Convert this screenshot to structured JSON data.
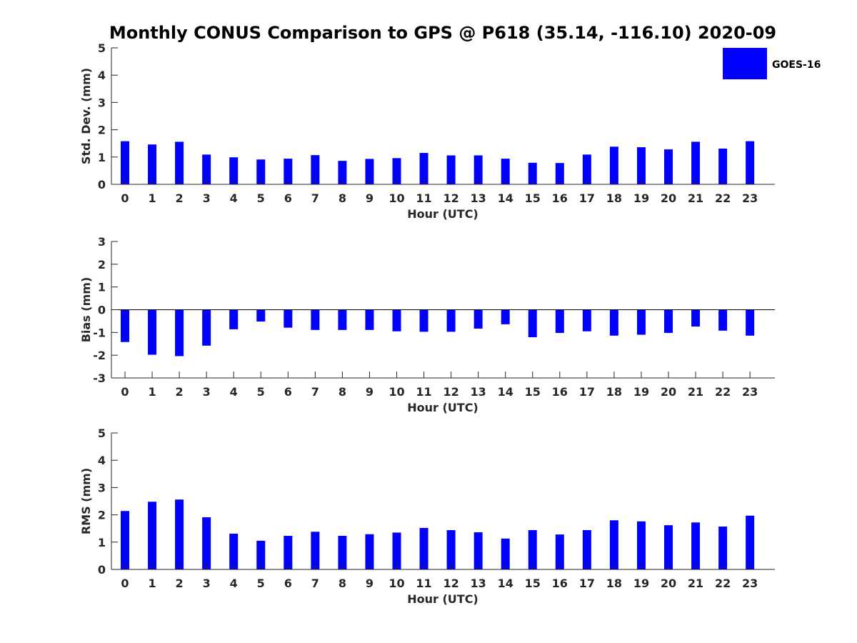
{
  "title": "Monthly CONUS Comparison to GPS @ P618 (35.14, -116.10) 2020-09",
  "legend": {
    "label": "GOES-16",
    "color": "#0000ff"
  },
  "chart_data": [
    {
      "type": "bar",
      "categories": [
        "0",
        "1",
        "2",
        "3",
        "4",
        "5",
        "6",
        "7",
        "8",
        "9",
        "10",
        "11",
        "12",
        "13",
        "14",
        "15",
        "16",
        "17",
        "18",
        "19",
        "20",
        "21",
        "22",
        "23"
      ],
      "series": [
        {
          "name": "GOES-16",
          "values": [
            1.58,
            1.46,
            1.56,
            1.09,
            0.99,
            0.91,
            0.94,
            1.07,
            0.86,
            0.93,
            0.96,
            1.15,
            1.06,
            1.06,
            0.94,
            0.79,
            0.78,
            1.09,
            1.38,
            1.36,
            1.28,
            1.56,
            1.31,
            1.58
          ]
        }
      ],
      "xlabel": "Hour (UTC)",
      "ylabel": "Std. Dev. (mm)",
      "ylim": [
        0,
        5
      ],
      "yticks": [
        "0",
        "1",
        "2",
        "3",
        "4",
        "5"
      ],
      "grid": false,
      "legend_position": "top-right"
    },
    {
      "type": "bar",
      "categories": [
        "0",
        "1",
        "2",
        "3",
        "4",
        "5",
        "6",
        "7",
        "8",
        "9",
        "10",
        "11",
        "12",
        "13",
        "14",
        "15",
        "16",
        "17",
        "18",
        "19",
        "20",
        "21",
        "22",
        "23"
      ],
      "series": [
        {
          "name": "GOES-16",
          "values": [
            -1.42,
            -1.98,
            -2.04,
            -1.58,
            -0.86,
            -0.52,
            -0.79,
            -0.89,
            -0.89,
            -0.89,
            -0.95,
            -0.97,
            -0.97,
            -0.83,
            -0.64,
            -1.21,
            -1.02,
            -0.95,
            -1.14,
            -1.1,
            -1.02,
            -0.74,
            -0.92,
            -1.14
          ]
        }
      ],
      "xlabel": "Hour (UTC)",
      "ylabel": "Bias (mm)",
      "ylim": [
        -3,
        3
      ],
      "yticks": [
        "-3",
        "-2",
        "-1",
        "0",
        "1",
        "2",
        "3"
      ],
      "grid": false
    },
    {
      "type": "bar",
      "categories": [
        "0",
        "1",
        "2",
        "3",
        "4",
        "5",
        "6",
        "7",
        "8",
        "9",
        "10",
        "11",
        "12",
        "13",
        "14",
        "15",
        "16",
        "17",
        "18",
        "19",
        "20",
        "21",
        "22",
        "23"
      ],
      "series": [
        {
          "name": "GOES-16",
          "values": [
            2.14,
            2.48,
            2.56,
            1.91,
            1.31,
            1.05,
            1.23,
            1.38,
            1.23,
            1.29,
            1.35,
            1.52,
            1.44,
            1.36,
            1.13,
            1.44,
            1.28,
            1.44,
            1.8,
            1.76,
            1.62,
            1.72,
            1.57,
            1.97
          ]
        }
      ],
      "xlabel": "Hour (UTC)",
      "ylabel": "RMS (mm)",
      "ylim": [
        0,
        5
      ],
      "yticks": [
        "0",
        "1",
        "2",
        "3",
        "4",
        "5"
      ],
      "grid": false
    }
  ]
}
